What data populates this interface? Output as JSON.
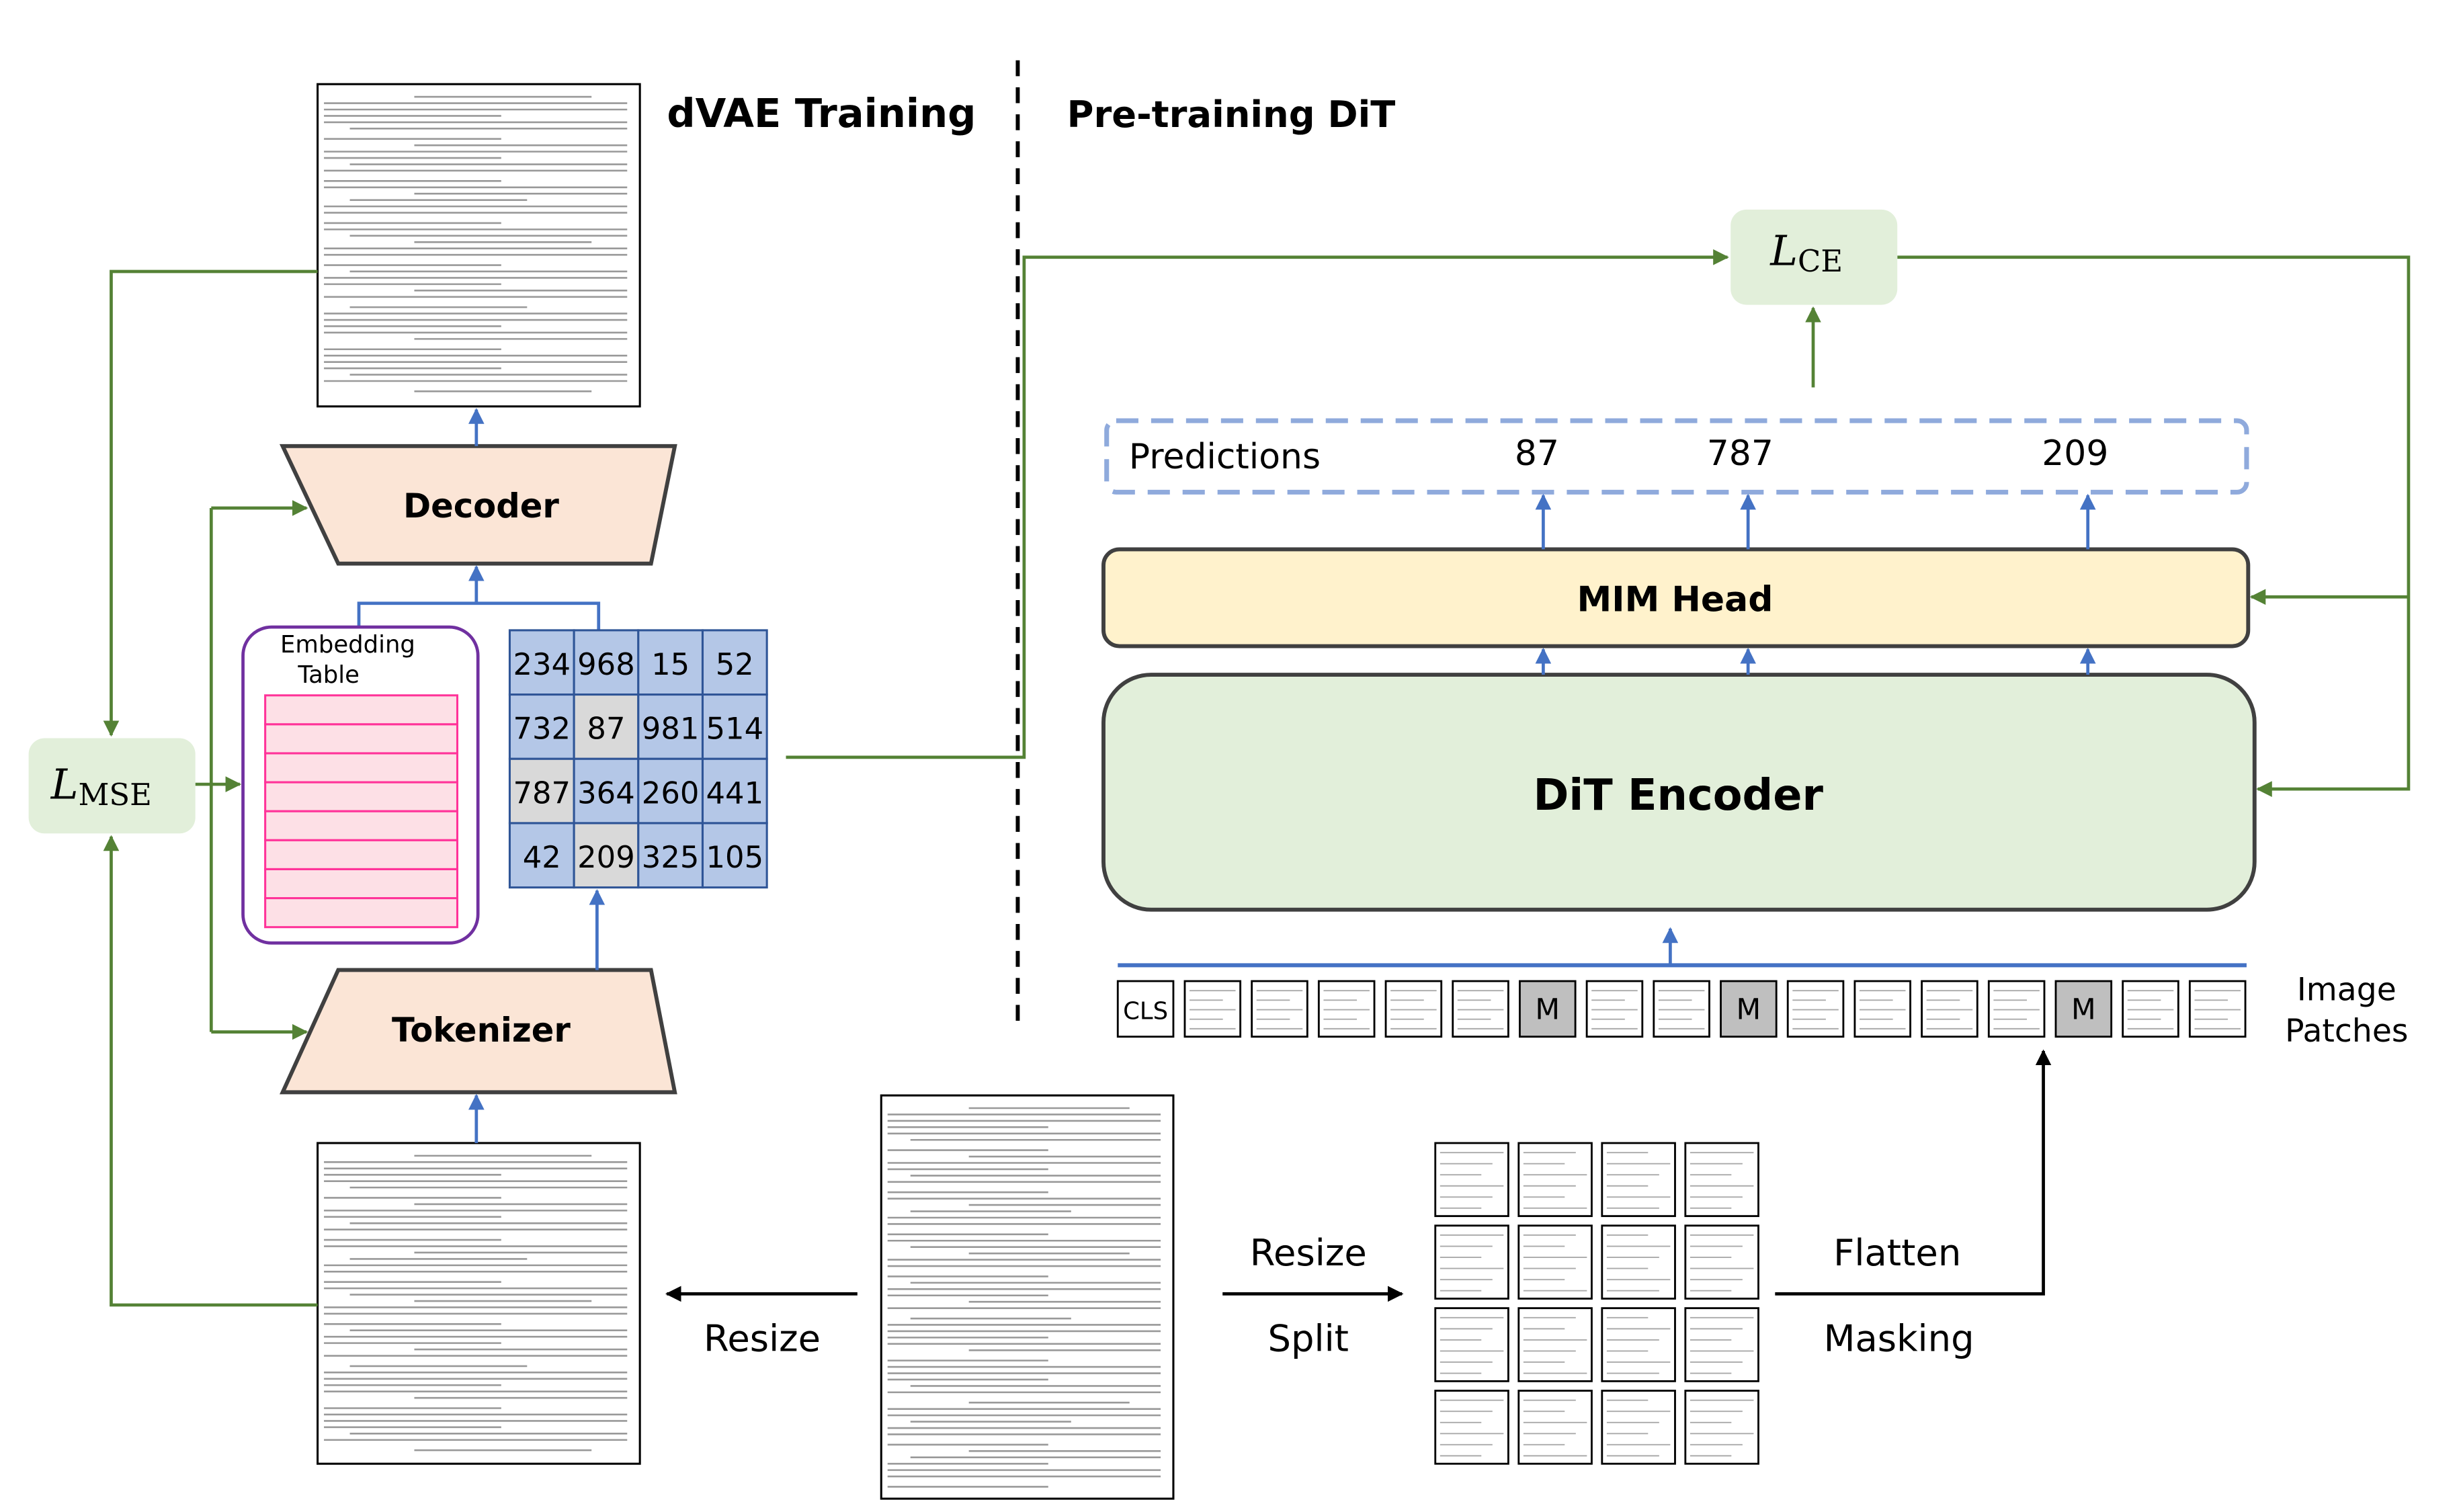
{
  "sections": {
    "left_title": "dVAE Training",
    "right_title": "Pre-training DiT"
  },
  "dvae": {
    "decoder_label": "Decoder",
    "tokenizer_label": "Tokenizer",
    "embedding_table": {
      "line1": "Embedding",
      "line2": "Table",
      "rows": 8
    },
    "token_grid": [
      [
        "234",
        "968",
        "15",
        "52"
      ],
      [
        "732",
        "87",
        "981",
        "514"
      ],
      [
        "787",
        "364",
        "260",
        "441"
      ],
      [
        "42",
        "209",
        "325",
        "105"
      ]
    ],
    "masked_tokens": [
      "87",
      "787",
      "209"
    ],
    "loss_mse": {
      "symbol": "L",
      "subscript": "MSE"
    }
  },
  "dit": {
    "loss_ce": {
      "symbol": "L",
      "subscript": "CE"
    },
    "predictions": {
      "label": "Predictions",
      "values": [
        "87",
        "787",
        "209"
      ]
    },
    "mim_head_label": "MIM Head",
    "encoder_label": "DiT Encoder",
    "patches": [
      "CLS",
      "",
      "",
      "",
      "",
      "",
      "M",
      "",
      "",
      "M",
      "",
      "",
      "",
      "",
      "M",
      "",
      ""
    ],
    "patches_label": {
      "line1": "Image",
      "line2": "Patches"
    }
  },
  "pipeline": {
    "resize_left": "Resize",
    "resize_right": "Resize",
    "split": "Split",
    "flatten": "Flatten",
    "masking": "Masking"
  },
  "colors": {
    "green_arrow": "#548235",
    "blue_arrow": "#4472c4",
    "loss_fill": "#e2efda",
    "trapezoid_fill": "#fbe5d6",
    "grid_blue": "#b4c7e7",
    "grid_grey": "#d9d9d9",
    "mim_fill": "#fff2cc",
    "embedding_border": "#7030a0",
    "embedding_rows": "#ff3399"
  }
}
